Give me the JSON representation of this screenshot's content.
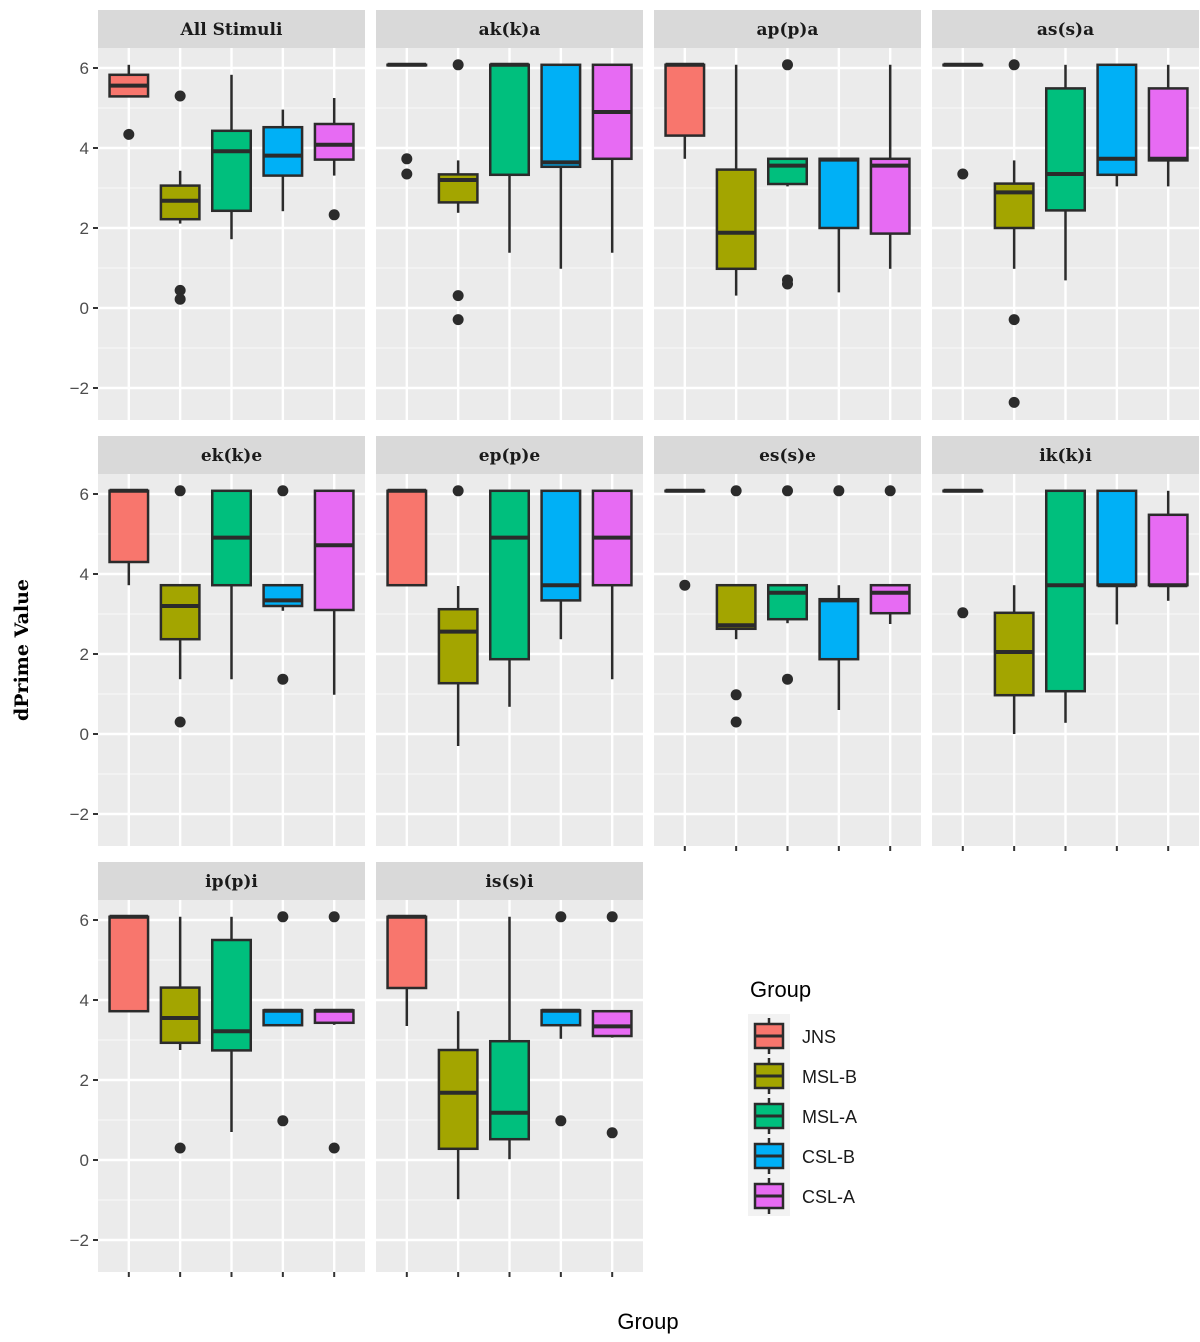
{
  "chart_data": {
    "type": "boxplot",
    "xlabel": "Group",
    "ylabel": "dPrime Value",
    "ylim": [
      -2.8,
      6.5
    ],
    "yticks": [
      -2,
      0,
      2,
      4,
      6
    ],
    "grid": true,
    "legend": {
      "title": "Group",
      "placement": "bottom-right"
    },
    "groups": [
      "JNS",
      "MSL-B",
      "MSL-A",
      "CSL-B",
      "CSL-A"
    ],
    "colors": {
      "JNS": "#F8766D",
      "MSL-B": "#A3A500",
      "MSL-A": "#00BF7D",
      "CSL-B": "#00B0F6",
      "CSL-A": "#E76BF3"
    },
    "stat_order": [
      "lower_whisker",
      "q1",
      "median",
      "q3",
      "upper_whisker"
    ],
    "facets": [
      {
        "title": "All Stimuli",
        "boxes": [
          {
            "group": "JNS",
            "stats": [
              5.29,
              5.29,
              5.56,
              5.83,
              6.08
            ],
            "outliers": [
              4.34
            ]
          },
          {
            "group": "MSL-B",
            "stats": [
              2.11,
              2.22,
              2.68,
              3.06,
              3.43
            ],
            "outliers": [
              5.3,
              0.44,
              0.22
            ]
          },
          {
            "group": "MSL-A",
            "stats": [
              1.72,
              2.43,
              3.92,
              4.43,
              5.83
            ],
            "outliers": []
          },
          {
            "group": "CSL-B",
            "stats": [
              2.42,
              3.31,
              3.81,
              4.52,
              4.96
            ],
            "outliers": []
          },
          {
            "group": "CSL-A",
            "stats": [
              3.31,
              3.71,
              4.08,
              4.6,
              5.25
            ],
            "outliers": [
              2.33
            ]
          }
        ]
      },
      {
        "title": "ak(k)a",
        "boxes": [
          {
            "group": "JNS",
            "stats": [
              6.08,
              6.08,
              6.08,
              6.08,
              6.08
            ],
            "outliers": [
              3.73,
              3.35
            ]
          },
          {
            "group": "MSL-B",
            "stats": [
              2.38,
              2.64,
              3.2,
              3.34,
              3.69
            ],
            "outliers": [
              6.08,
              0.31,
              -0.29
            ]
          },
          {
            "group": "MSL-A",
            "stats": [
              1.38,
              3.33,
              6.08,
              6.08,
              6.08
            ],
            "outliers": []
          },
          {
            "group": "CSL-B",
            "stats": [
              0.98,
              3.53,
              3.64,
              6.08,
              6.08
            ],
            "outliers": []
          },
          {
            "group": "CSL-A",
            "stats": [
              1.38,
              3.73,
              4.9,
              6.08,
              6.08
            ],
            "outliers": []
          }
        ]
      },
      {
        "title": "ap(p)a",
        "boxes": [
          {
            "group": "JNS",
            "stats": [
              3.73,
              4.31,
              6.08,
              6.08,
              6.08
            ],
            "outliers": []
          },
          {
            "group": "MSL-B",
            "stats": [
              0.31,
              0.98,
              1.88,
              3.46,
              6.08
            ],
            "outliers": []
          },
          {
            "group": "MSL-A",
            "stats": [
              3.04,
              3.1,
              3.56,
              3.73,
              3.73
            ],
            "outliers": [
              6.08,
              0.7,
              0.6
            ]
          },
          {
            "group": "CSL-B",
            "stats": [
              0.39,
              2.0,
              3.71,
              3.73,
              3.73
            ],
            "outliers": []
          },
          {
            "group": "CSL-A",
            "stats": [
              0.98,
              1.86,
              3.56,
              3.73,
              6.08
            ],
            "outliers": []
          }
        ]
      },
      {
        "title": "as(s)a",
        "boxes": [
          {
            "group": "JNS",
            "stats": [
              6.08,
              6.08,
              6.08,
              6.08,
              6.08
            ],
            "outliers": [
              3.35
            ]
          },
          {
            "group": "MSL-B",
            "stats": [
              0.98,
              2.0,
              2.89,
              3.11,
              3.69
            ],
            "outliers": [
              6.08,
              -0.29,
              -2.36
            ]
          },
          {
            "group": "MSL-A",
            "stats": [
              0.69,
              2.44,
              3.35,
              5.49,
              6.08
            ],
            "outliers": []
          },
          {
            "group": "CSL-B",
            "stats": [
              3.04,
              3.33,
              3.73,
              6.08,
              6.08
            ],
            "outliers": []
          },
          {
            "group": "CSL-A",
            "stats": [
              3.04,
              3.69,
              3.73,
              5.49,
              6.08
            ],
            "outliers": []
          }
        ]
      },
      {
        "title": "ek(k)e",
        "boxes": [
          {
            "group": "JNS",
            "stats": [
              3.72,
              4.3,
              6.08,
              6.08,
              6.08
            ],
            "outliers": []
          },
          {
            "group": "MSL-B",
            "stats": [
              1.37,
              2.37,
              3.2,
              3.72,
              3.72
            ],
            "outliers": [
              6.08,
              0.3
            ]
          },
          {
            "group": "MSL-A",
            "stats": [
              1.37,
              3.72,
              4.91,
              6.08,
              6.08
            ],
            "outliers": []
          },
          {
            "group": "CSL-B",
            "stats": [
              3.08,
              3.2,
              3.34,
              3.72,
              3.72
            ],
            "outliers": [
              6.08,
              1.37
            ]
          },
          {
            "group": "CSL-A",
            "stats": [
              0.98,
              3.1,
              4.72,
              6.08,
              6.08
            ],
            "outliers": []
          }
        ]
      },
      {
        "title": "ep(p)e",
        "boxes": [
          {
            "group": "JNS",
            "stats": [
              3.72,
              3.72,
              6.08,
              6.08,
              6.08
            ],
            "outliers": []
          },
          {
            "group": "MSL-B",
            "stats": [
              -0.3,
              1.27,
              2.56,
              3.12,
              3.7
            ],
            "outliers": [
              6.08
            ]
          },
          {
            "group": "MSL-A",
            "stats": [
              0.68,
              1.87,
              4.91,
              6.08,
              6.08
            ],
            "outliers": []
          },
          {
            "group": "CSL-B",
            "stats": [
              2.37,
              3.34,
              3.72,
              6.08,
              6.08
            ],
            "outliers": []
          },
          {
            "group": "CSL-A",
            "stats": [
              1.37,
              3.72,
              4.91,
              6.08,
              6.08
            ],
            "outliers": []
          }
        ]
      },
      {
        "title": "es(s)e",
        "boxes": [
          {
            "group": "JNS",
            "stats": [
              6.08,
              6.08,
              6.08,
              6.08,
              6.08
            ],
            "outliers": [
              3.72
            ]
          },
          {
            "group": "MSL-B",
            "stats": [
              2.37,
              2.63,
              2.72,
              3.72,
              3.72
            ],
            "outliers": [
              6.08,
              0.98,
              0.3
            ]
          },
          {
            "group": "MSL-A",
            "stats": [
              2.77,
              2.87,
              3.53,
              3.72,
              3.72
            ],
            "outliers": [
              6.08,
              1.37
            ]
          },
          {
            "group": "CSL-B",
            "stats": [
              0.6,
              1.87,
              3.34,
              3.37,
              3.72
            ],
            "outliers": [
              6.08
            ]
          },
          {
            "group": "CSL-A",
            "stats": [
              2.75,
              3.02,
              3.53,
              3.72,
              3.72
            ],
            "outliers": [
              6.08
            ]
          }
        ]
      },
      {
        "title": "ik(k)i",
        "boxes": [
          {
            "group": "JNS",
            "stats": [
              6.08,
              6.08,
              6.08,
              6.08,
              6.08
            ],
            "outliers": [
              3.03
            ]
          },
          {
            "group": "MSL-B",
            "stats": [
              0.0,
              0.97,
              2.05,
              3.03,
              3.72
            ],
            "outliers": []
          },
          {
            "group": "MSL-A",
            "stats": [
              0.28,
              1.07,
              3.72,
              6.08,
              6.08
            ],
            "outliers": []
          },
          {
            "group": "CSL-B",
            "stats": [
              2.74,
              3.72,
              3.72,
              6.08,
              6.08
            ],
            "outliers": []
          },
          {
            "group": "CSL-A",
            "stats": [
              3.33,
              3.72,
              3.72,
              5.48,
              6.08
            ],
            "outliers": []
          }
        ]
      },
      {
        "title": "ip(p)i",
        "boxes": [
          {
            "group": "JNS",
            "stats": [
              3.72,
              3.72,
              6.08,
              6.08,
              6.08
            ],
            "outliers": []
          },
          {
            "group": "MSL-B",
            "stats": [
              2.75,
              2.93,
              3.55,
              4.31,
              6.08
            ],
            "outliers": [
              0.3
            ]
          },
          {
            "group": "MSL-A",
            "stats": [
              0.7,
              2.74,
              3.22,
              5.5,
              6.08
            ],
            "outliers": []
          },
          {
            "group": "CSL-B",
            "stats": [
              3.37,
              3.37,
              3.73,
              3.74,
              3.74
            ],
            "outliers": [
              6.08,
              0.98
            ]
          },
          {
            "group": "CSL-A",
            "stats": [
              3.38,
              3.43,
              3.73,
              3.74,
              3.74
            ],
            "outliers": [
              6.08,
              0.3
            ]
          }
        ]
      },
      {
        "title": "is(s)i",
        "boxes": [
          {
            "group": "JNS",
            "stats": [
              3.35,
              4.3,
              6.08,
              6.08,
              6.08
            ],
            "outliers": []
          },
          {
            "group": "MSL-B",
            "stats": [
              -0.98,
              0.28,
              1.68,
              2.75,
              3.72
            ],
            "outliers": []
          },
          {
            "group": "MSL-A",
            "stats": [
              0.02,
              0.52,
              1.18,
              2.97,
              6.08
            ],
            "outliers": []
          },
          {
            "group": "CSL-B",
            "stats": [
              3.03,
              3.37,
              3.73,
              3.74,
              3.74
            ],
            "outliers": [
              6.08,
              0.98
            ]
          },
          {
            "group": "CSL-A",
            "stats": [
              3.06,
              3.1,
              3.34,
              3.72,
              3.72
            ],
            "outliers": [
              6.08,
              0.68
            ]
          }
        ]
      }
    ]
  }
}
